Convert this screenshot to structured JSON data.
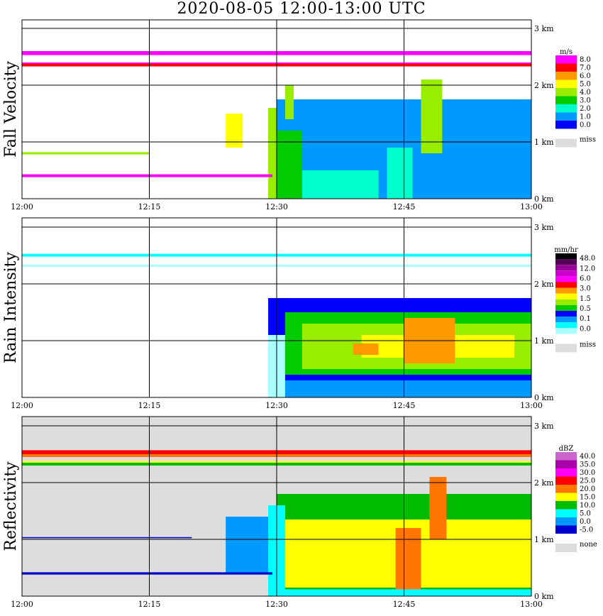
{
  "title": "2020-08-05   12:00-13:00 UTC",
  "chart_data": [
    {
      "type": "heatmap",
      "title": "Fall Velocity",
      "x_ticks": [
        "12:00",
        "12:15",
        "12:30",
        "12:45",
        "13:00"
      ],
      "y_ticks": [
        "0 km",
        "1 km",
        "2 km",
        "3 km"
      ],
      "ylim_km": [
        0,
        3.2
      ],
      "legend": {
        "unit": "m/s",
        "levels": [
          "8.0",
          "7.0",
          "6.0",
          "5.0",
          "4.0",
          "3.0",
          "2.0",
          "1.0",
          "0.0"
        ],
        "colors": [
          "#ff00ff",
          "#ff0000",
          "#ff9900",
          "#ffff00",
          "#99ee00",
          "#00cc00",
          "#00ffcc",
          "#0099ff",
          "#0000ff"
        ],
        "missing_label": "miss",
        "missing_color": "#dddddd"
      },
      "background": "#ffffff",
      "bands": [
        {
          "t0": 0,
          "t1": 60,
          "z0": 2.53,
          "z1": 2.6,
          "color": "#ff00ff"
        },
        {
          "t0": 0,
          "t1": 60,
          "z0": 2.33,
          "z1": 2.38,
          "color": "#ff0000"
        },
        {
          "t0": 0,
          "t1": 60,
          "z0": 2.38,
          "z1": 2.4,
          "color": "#ff00ff"
        },
        {
          "t0": 0,
          "t1": 29.5,
          "z0": 0.38,
          "z1": 0.43,
          "color": "#ff00ff"
        },
        {
          "t0": 0,
          "t1": 15,
          "z0": 0.78,
          "z1": 0.82,
          "color": "#99ee00"
        }
      ],
      "rain_fill": [
        {
          "t0": 29,
          "t1": 30.5,
          "z0": 0,
          "z1": 1.6,
          "color": "#99ee00"
        },
        {
          "t0": 30,
          "t1": 60,
          "z0": 0,
          "z1": 1.75,
          "color": "#0099ff"
        },
        {
          "t0": 30,
          "t1": 42,
          "z0": 0,
          "z1": 0.5,
          "color": "#00ffcc"
        },
        {
          "t0": 30,
          "t1": 33,
          "z0": 0,
          "z1": 1.2,
          "color": "#00cc00"
        },
        {
          "t0": 43,
          "t1": 46,
          "z0": 0,
          "z1": 0.9,
          "color": "#00ffcc"
        },
        {
          "t0": 47,
          "t1": 49.5,
          "z0": 0.8,
          "z1": 2.1,
          "color": "#99ee00"
        },
        {
          "t0": 31,
          "t1": 32,
          "z0": 1.4,
          "z1": 2.0,
          "color": "#99ee00"
        },
        {
          "t0": 24,
          "t1": 26,
          "z0": 0.9,
          "z1": 1.5,
          "color": "#ffff00"
        }
      ]
    },
    {
      "type": "heatmap",
      "title": "Rain Intensity",
      "x_ticks": [
        "12:00",
        "12:15",
        "12:30",
        "12:45",
        "13:00"
      ],
      "y_ticks": [
        "0 km",
        "1 km",
        "2 km",
        "3 km"
      ],
      "ylim_km": [
        0,
        3.2
      ],
      "legend": {
        "unit": "mm/hr",
        "levels": [
          "48.0",
          "12.0",
          "6.0",
          "3.0",
          "1.5",
          "0.5",
          "0.1",
          "0.0"
        ],
        "colors": [
          "#000000",
          "#550055",
          "#990099",
          "#cc00cc",
          "#ff00ff",
          "#ff0000",
          "#ff9900",
          "#ffff00",
          "#99ee00",
          "#00cc00",
          "#0000ff",
          "#0099ff",
          "#00ffff",
          "#aaffff"
        ],
        "missing_label": "miss",
        "missing_color": "#dddddd"
      },
      "background": "#ffffff",
      "bands": [
        {
          "t0": 0,
          "t1": 60,
          "z0": 2.48,
          "z1": 2.53,
          "color": "#00ffff"
        },
        {
          "t0": 0,
          "t1": 60,
          "z0": 2.3,
          "z1": 2.34,
          "color": "#aaffff"
        }
      ],
      "rain_fill": [
        {
          "t0": 29,
          "t1": 60,
          "z0": 0,
          "z1": 1.75,
          "color": "#0000ff"
        },
        {
          "t0": 31,
          "t1": 60,
          "z0": 0.4,
          "z1": 1.5,
          "color": "#00cc00"
        },
        {
          "t0": 33,
          "t1": 60,
          "z0": 0.5,
          "z1": 1.3,
          "color": "#99ee00"
        },
        {
          "t0": 40,
          "t1": 58,
          "z0": 0.7,
          "z1": 1.1,
          "color": "#ffff00"
        },
        {
          "t0": 39,
          "t1": 42,
          "z0": 0.75,
          "z1": 0.95,
          "color": "#ff9900"
        },
        {
          "t0": 45,
          "t1": 51,
          "z0": 0.6,
          "z1": 1.4,
          "color": "#ff9900"
        },
        {
          "t0": 29,
          "t1": 31,
          "z0": 0,
          "z1": 1.1,
          "color": "#aaffff"
        },
        {
          "t0": 31,
          "t1": 60,
          "z0": 0,
          "z1": 0.3,
          "color": "#0099ff"
        }
      ]
    },
    {
      "type": "heatmap",
      "title": "Reflectivity",
      "x_ticks": [
        "12:00",
        "12:15",
        "12:30",
        "12:45",
        "13:00"
      ],
      "y_ticks": [
        "0 km",
        "1 km",
        "2 km",
        "3 km"
      ],
      "ylim_km": [
        0,
        3.2
      ],
      "legend": {
        "unit": "dBZ",
        "levels": [
          "40.0",
          "35.0",
          "30.0",
          "25.0",
          "20.0",
          "15.0",
          "10.0",
          "5.0",
          "0.0",
          "-5.0"
        ],
        "colors": [
          "#cc66cc",
          "#aa00aa",
          "#ff00ff",
          "#ff0000",
          "#ff7700",
          "#ffff00",
          "#00bb00",
          "#00ffff",
          "#0099ff",
          "#0000cc"
        ],
        "missing_label": "none",
        "missing_color": "#dddddd"
      },
      "background": "#dddddd",
      "bands": [
        {
          "t0": 0,
          "t1": 60,
          "z0": 2.5,
          "z1": 2.57,
          "color": "#ff0000"
        },
        {
          "t0": 0,
          "t1": 60,
          "z0": 2.45,
          "z1": 2.5,
          "color": "#ff7700"
        },
        {
          "t0": 0,
          "t1": 60,
          "z0": 2.3,
          "z1": 2.35,
          "color": "#00bb00"
        },
        {
          "t0": 0,
          "t1": 60,
          "z0": 2.35,
          "z1": 2.38,
          "color": "#ffff00"
        },
        {
          "t0": 0,
          "t1": 29.5,
          "z0": 0.38,
          "z1": 0.42,
          "color": "#0000cc"
        },
        {
          "t0": 0,
          "t1": 20,
          "z0": 1.02,
          "z1": 1.04,
          "color": "#0000cc"
        }
      ],
      "rain_fill": [
        {
          "t0": 30,
          "t1": 60,
          "z0": 0,
          "z1": 1.8,
          "color": "#00bb00"
        },
        {
          "t0": 29,
          "t1": 31,
          "z0": 0,
          "z1": 1.6,
          "color": "#00ffff"
        },
        {
          "t0": 31,
          "t1": 60,
          "z0": 0.15,
          "z1": 1.35,
          "color": "#ffff00"
        },
        {
          "t0": 44,
          "t1": 47,
          "z0": 0.1,
          "z1": 1.2,
          "color": "#ff7700"
        },
        {
          "t0": 48,
          "t1": 50,
          "z0": 1.0,
          "z1": 2.1,
          "color": "#ff7700"
        },
        {
          "t0": 31,
          "t1": 60,
          "z0": 0,
          "z1": 0.12,
          "color": "#00ffff"
        },
        {
          "t0": 24,
          "t1": 29,
          "z0": 0.4,
          "z1": 1.4,
          "color": "#0099ff"
        }
      ]
    }
  ]
}
